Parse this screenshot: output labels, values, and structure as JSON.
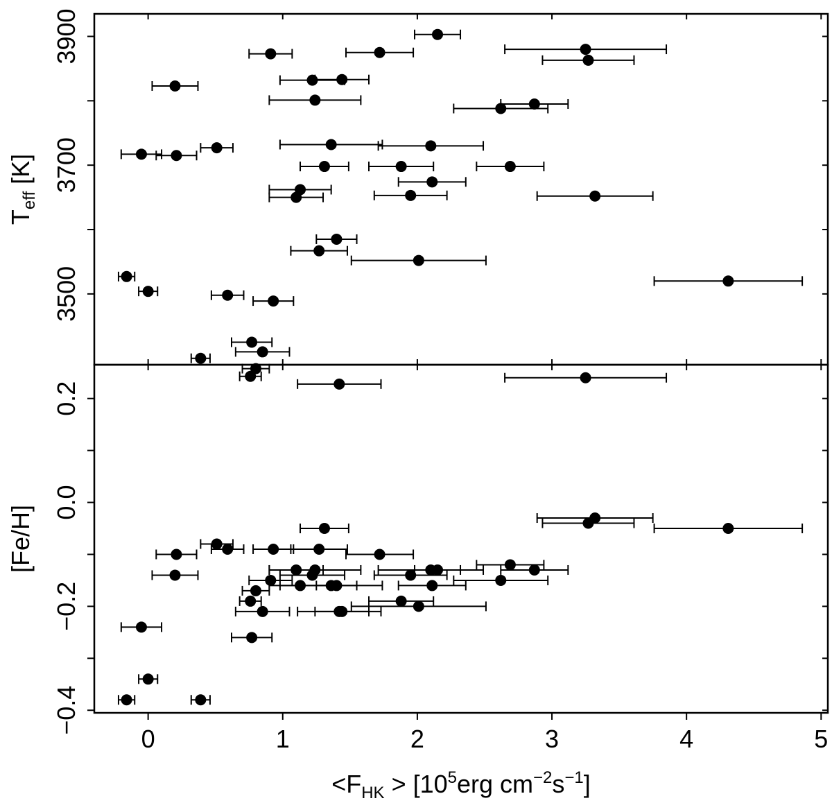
{
  "chart_data": [
    {
      "type": "scatter",
      "panel": "top",
      "ylabel_main": "T",
      "ylabel_sub": "eff",
      "ylabel_rest": " [K]",
      "xlim": [
        -0.4,
        5.05
      ],
      "ylim": [
        3390,
        3935
      ],
      "yticks": [
        3500,
        3700,
        3900
      ],
      "ytick_labels": [
        "3500",
        "3700",
        "3900"
      ],
      "yticks_minor": [
        3500,
        3600,
        3700,
        3800,
        3900
      ],
      "points": [
        {
          "x": 2.15,
          "y": 3903,
          "xerr": 0.17
        },
        {
          "x": 3.25,
          "y": 3880,
          "xerr": 0.6
        },
        {
          "x": 0.91,
          "y": 3873,
          "xerr": 0.16
        },
        {
          "x": 1.72,
          "y": 3875,
          "xerr": 0.25
        },
        {
          "x": 3.27,
          "y": 3863,
          "xerr": 0.34
        },
        {
          "x": 1.22,
          "y": 3832,
          "xerr": 0.24
        },
        {
          "x": 1.44,
          "y": 3833,
          "xerr": 0.2
        },
        {
          "x": 0.2,
          "y": 3823,
          "xerr": 0.17
        },
        {
          "x": 1.24,
          "y": 3801,
          "xerr": 0.34
        },
        {
          "x": 2.87,
          "y": 3795,
          "xerr": 0.25
        },
        {
          "x": 2.62,
          "y": 3788,
          "xerr": 0.35
        },
        {
          "x": 1.36,
          "y": 3732,
          "xerr": 0.38
        },
        {
          "x": 2.1,
          "y": 3730,
          "xerr": 0.39
        },
        {
          "x": 0.51,
          "y": 3727,
          "xerr": 0.12
        },
        {
          "x": -0.05,
          "y": 3717,
          "xerr": 0.15
        },
        {
          "x": 0.21,
          "y": 3715,
          "xerr": 0.15
        },
        {
          "x": 1.31,
          "y": 3698,
          "xerr": 0.18
        },
        {
          "x": 1.88,
          "y": 3698,
          "xerr": 0.24
        },
        {
          "x": 2.69,
          "y": 3698,
          "xerr": 0.25
        },
        {
          "x": 2.11,
          "y": 3674,
          "xerr": 0.25
        },
        {
          "x": 1.13,
          "y": 3662,
          "xerr": 0.23
        },
        {
          "x": 1.95,
          "y": 3653,
          "xerr": 0.27
        },
        {
          "x": 1.1,
          "y": 3650,
          "xerr": 0.2
        },
        {
          "x": 3.32,
          "y": 3652,
          "xerr": 0.43
        },
        {
          "x": 1.4,
          "y": 3585,
          "xerr": 0.15
        },
        {
          "x": 1.27,
          "y": 3567,
          "xerr": 0.21
        },
        {
          "x": 2.01,
          "y": 3552,
          "xerr": 0.5
        },
        {
          "x": -0.16,
          "y": 3527,
          "xerr": 0.06
        },
        {
          "x": 4.31,
          "y": 3520,
          "xerr": 0.55
        },
        {
          "x": 0.0,
          "y": 3504,
          "xerr": 0.07
        },
        {
          "x": 0.59,
          "y": 3498,
          "xerr": 0.12
        },
        {
          "x": 0.93,
          "y": 3489,
          "xerr": 0.15
        },
        {
          "x": 0.77,
          "y": 3425,
          "xerr": 0.15
        },
        {
          "x": 0.85,
          "y": 3410,
          "xerr": 0.2
        },
        {
          "x": 0.39,
          "y": 3400,
          "xerr": 0.07
        },
        {
          "x": 0.8,
          "y": 3384,
          "xerr": 0.1
        },
        {
          "x": 0.76,
          "y": 3372,
          "xerr": 0.08
        },
        {
          "x": 1.42,
          "y": 3360,
          "xerr": 0.31
        }
      ]
    },
    {
      "type": "scatter",
      "panel": "bottom",
      "ylabel": "[Fe/H]",
      "xlabel_pre": "<F",
      "xlabel_sub": "HK",
      "xlabel_mid": " > [10",
      "xlabel_sup1": "5",
      "xlabel_mid2": "erg cm",
      "xlabel_sup2": "−2",
      "xlabel_mid3": "s",
      "xlabel_sup3": "−1",
      "xlabel_end": "]",
      "xlim": [
        -0.4,
        5.05
      ],
      "ylim": [
        -0.405,
        0.265
      ],
      "xticks": [
        0,
        1,
        2,
        3,
        4,
        5
      ],
      "xtick_labels": [
        "0",
        "1",
        "2",
        "3",
        "4",
        "5"
      ],
      "yticks": [
        -0.4,
        -0.2,
        0.0,
        0.2
      ],
      "ytick_labels": [
        "−0.4",
        "−0.2",
        "0.0",
        "0.2"
      ],
      "yticks_minor": [
        -0.3,
        -0.1,
        0.1
      ],
      "points": [
        {
          "x": 3.25,
          "y": 0.24,
          "xerr": 0.6
        },
        {
          "x": 3.32,
          "y": -0.03,
          "xerr": 0.43
        },
        {
          "x": 3.27,
          "y": -0.04,
          "xerr": 0.34
        },
        {
          "x": 1.31,
          "y": -0.05,
          "xerr": 0.18
        },
        {
          "x": 4.31,
          "y": -0.05,
          "xerr": 0.55
        },
        {
          "x": 0.51,
          "y": -0.08,
          "xerr": 0.12
        },
        {
          "x": 0.59,
          "y": -0.09,
          "xerr": 0.12
        },
        {
          "x": 0.93,
          "y": -0.09,
          "xerr": 0.15
        },
        {
          "x": 1.27,
          "y": -0.09,
          "xerr": 0.21
        },
        {
          "x": 0.21,
          "y": -0.1,
          "xerr": 0.15
        },
        {
          "x": 1.72,
          "y": -0.1,
          "xerr": 0.25
        },
        {
          "x": 2.69,
          "y": -0.12,
          "xerr": 0.25
        },
        {
          "x": 1.1,
          "y": -0.13,
          "xerr": 0.2
        },
        {
          "x": 1.24,
          "y": -0.13,
          "xerr": 0.34
        },
        {
          "x": 2.1,
          "y": -0.13,
          "xerr": 0.39
        },
        {
          "x": 2.15,
          "y": -0.13,
          "xerr": 0.17
        },
        {
          "x": 2.87,
          "y": -0.13,
          "xerr": 0.25
        },
        {
          "x": 0.2,
          "y": -0.14,
          "xerr": 0.17
        },
        {
          "x": 1.22,
          "y": -0.14,
          "xerr": 0.24
        },
        {
          "x": 1.95,
          "y": -0.14,
          "xerr": 0.27
        },
        {
          "x": 0.91,
          "y": -0.15,
          "xerr": 0.16
        },
        {
          "x": 2.62,
          "y": -0.15,
          "xerr": 0.35
        },
        {
          "x": 1.13,
          "y": -0.16,
          "xerr": 0.23
        },
        {
          "x": 1.36,
          "y": -0.16,
          "xerr": 0.38
        },
        {
          "x": 1.4,
          "y": -0.16,
          "xerr": 0.15
        },
        {
          "x": 2.11,
          "y": -0.16,
          "xerr": 0.25
        },
        {
          "x": 0.8,
          "y": -0.17,
          "xerr": 0.1
        },
        {
          "x": 0.76,
          "y": -0.19,
          "xerr": 0.08
        },
        {
          "x": 1.88,
          "y": -0.19,
          "xerr": 0.24
        },
        {
          "x": 2.01,
          "y": -0.2,
          "xerr": 0.5
        },
        {
          "x": 0.85,
          "y": -0.21,
          "xerr": 0.2
        },
        {
          "x": 1.42,
          "y": -0.21,
          "xerr": 0.31
        },
        {
          "x": 1.44,
          "y": -0.21,
          "xerr": 0.2
        },
        {
          "x": -0.05,
          "y": -0.24,
          "xerr": 0.15
        },
        {
          "x": 0.77,
          "y": -0.26,
          "xerr": 0.15
        },
        {
          "x": 0.0,
          "y": -0.34,
          "xerr": 0.07
        },
        {
          "x": -0.16,
          "y": -0.38,
          "xerr": 0.06
        },
        {
          "x": 0.39,
          "y": -0.38,
          "xerr": 0.07
        }
      ]
    }
  ]
}
